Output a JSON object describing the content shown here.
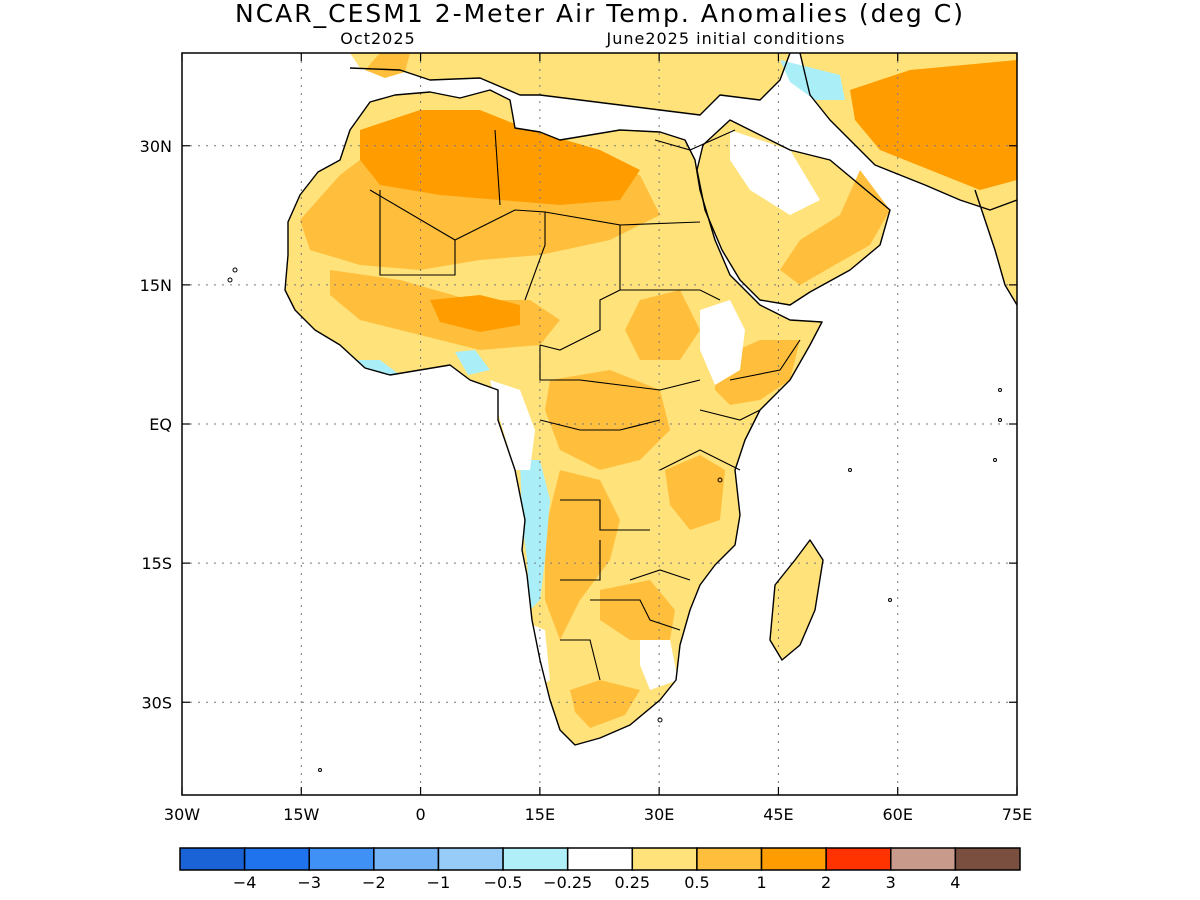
{
  "title": "NCAR_CESM1 2-Meter Air Temp. Anomalies (deg C)",
  "valid_month": "Oct2025",
  "init_label": "June2025 initial conditions",
  "map": {
    "lon_range": [
      -30,
      75
    ],
    "lat_range": [
      -40,
      40
    ],
    "x_ticks": [
      {
        "lon": -30,
        "label": "30W"
      },
      {
        "lon": -15,
        "label": "15W"
      },
      {
        "lon": 0,
        "label": "0"
      },
      {
        "lon": 15,
        "label": "15E"
      },
      {
        "lon": 30,
        "label": "30E"
      },
      {
        "lon": 45,
        "label": "45E"
      },
      {
        "lon": 60,
        "label": "60E"
      },
      {
        "lon": 75,
        "label": "75E"
      }
    ],
    "y_ticks": [
      {
        "lat": 30,
        "label": "30N"
      },
      {
        "lat": 15,
        "label": "15N"
      },
      {
        "lat": 0,
        "label": "EQ"
      },
      {
        "lat": -15,
        "label": "15S"
      },
      {
        "lat": -30,
        "label": "30S"
      }
    ],
    "gridlines": "dotted",
    "colors": {
      "land_base": "#ffe27a",
      "warm": "#ffbf3d",
      "warmer": "#ff9d00",
      "neutral": "#ffffff",
      "cool": "#aaeef8",
      "coast": "#000000"
    }
  },
  "colorbar": {
    "colors": [
      "#1a63d6",
      "#1f74ee",
      "#3f91f5",
      "#76b4f8",
      "#98ccf8",
      "#b0eef8",
      "#ffffff",
      "#ffe27a",
      "#ffbf3d",
      "#ff9d00",
      "#ff3300",
      "#c89a8c",
      "#7a4f40"
    ],
    "labels": [
      "−4",
      "−3",
      "−2",
      "−1",
      "−0.5",
      "−0.25",
      "0.25",
      "0.5",
      "1",
      "2",
      "3",
      "4"
    ]
  }
}
